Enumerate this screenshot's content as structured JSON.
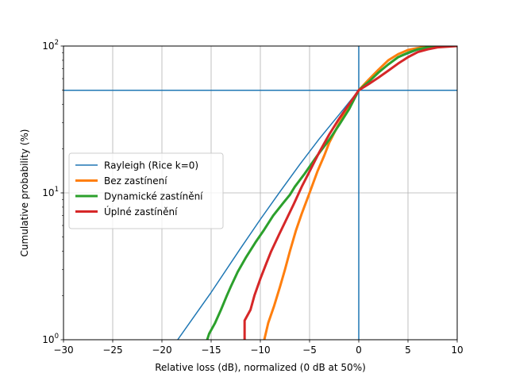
{
  "chart_data": {
    "type": "line",
    "xlabel": "Relative loss (dB), normalized (0 dB at 50%)",
    "ylabel": "Cumulative probability (%)",
    "xlim": [
      -30,
      10
    ],
    "ylim": [
      1,
      100
    ],
    "yscale": "log",
    "grid": true,
    "legend_position": "center-left",
    "x_ticks": [
      -30,
      -25,
      -20,
      -15,
      -10,
      -5,
      0,
      5,
      10
    ],
    "x_tick_labels": [
      "−30",
      "−25",
      "−20",
      "−15",
      "−10",
      "−5",
      "0",
      "5",
      "10"
    ],
    "y_ticks": [
      1,
      10,
      100
    ],
    "y_tick_labels": [
      {
        "base": "10",
        "exp": "0"
      },
      {
        "base": "10",
        "exp": "1"
      },
      {
        "base": "10",
        "exp": "2"
      }
    ],
    "reference_lines": {
      "vertical_x": 0,
      "horizontal_y": 50,
      "color": "#1f77b4"
    },
    "series": [
      {
        "name": "Rayleigh (Rice k=0)",
        "color": "#1f77b4",
        "width": 1.5,
        "points": [
          [
            -18.4,
            1
          ],
          [
            -15,
            2.1
          ],
          [
            -12,
            4.2
          ],
          [
            -10,
            6.6
          ],
          [
            -8,
            10.2
          ],
          [
            -6,
            15.6
          ],
          [
            -4,
            23.4
          ],
          [
            -2,
            34.1
          ],
          [
            0,
            50
          ],
          [
            2,
            67
          ],
          [
            4,
            83.5
          ],
          [
            6,
            94
          ],
          [
            8,
            98.8
          ],
          [
            10,
            100
          ]
        ]
      },
      {
        "name": "Bez zastínení",
        "color": "#ff7f0e",
        "width": 3,
        "points": [
          [
            -9.6,
            1
          ],
          [
            -9.2,
            1.3
          ],
          [
            -8.6,
            1.7
          ],
          [
            -8.0,
            2.3
          ],
          [
            -7.5,
            3.0
          ],
          [
            -7.0,
            4.0
          ],
          [
            -6.4,
            5.5
          ],
          [
            -5.8,
            7.2
          ],
          [
            -5.0,
            10
          ],
          [
            -4.2,
            14
          ],
          [
            -3.5,
            18
          ],
          [
            -3.0,
            22
          ],
          [
            -2.2,
            28
          ],
          [
            -1.5,
            34
          ],
          [
            -0.8,
            40
          ],
          [
            0,
            50
          ],
          [
            1,
            59
          ],
          [
            2,
            69
          ],
          [
            3,
            80
          ],
          [
            4,
            88
          ],
          [
            5,
            94
          ],
          [
            6,
            97
          ],
          [
            7,
            99
          ],
          [
            8,
            100
          ],
          [
            10,
            100
          ]
        ]
      },
      {
        "name": "Dynamické zastínění",
        "color": "#2ca02c",
        "width": 3,
        "points": [
          [
            -15.4,
            1
          ],
          [
            -15.2,
            1.1
          ],
          [
            -14.6,
            1.3
          ],
          [
            -14.0,
            1.6
          ],
          [
            -13.4,
            2.0
          ],
          [
            -13.0,
            2.3
          ],
          [
            -12.3,
            2.9
          ],
          [
            -11.5,
            3.6
          ],
          [
            -10.5,
            4.6
          ],
          [
            -9.7,
            5.5
          ],
          [
            -8.7,
            7.0
          ],
          [
            -7.7,
            8.5
          ],
          [
            -7.0,
            9.7
          ],
          [
            -6.5,
            11
          ],
          [
            -5.5,
            13.5
          ],
          [
            -4.2,
            18
          ],
          [
            -3.0,
            23
          ],
          [
            -2.0,
            29
          ],
          [
            -1.0,
            37
          ],
          [
            0,
            50
          ],
          [
            1,
            57
          ],
          [
            2,
            66
          ],
          [
            3,
            75
          ],
          [
            4,
            84
          ],
          [
            5,
            90
          ],
          [
            6,
            95
          ],
          [
            7,
            98
          ],
          [
            8,
            100
          ],
          [
            10,
            100
          ]
        ]
      },
      {
        "name": "Úplné zastínění",
        "color": "#d62728",
        "width": 3,
        "points": [
          [
            -11.6,
            1
          ],
          [
            -11.6,
            1.35
          ],
          [
            -11.0,
            1.6
          ],
          [
            -10.6,
            2.0
          ],
          [
            -10.0,
            2.6
          ],
          [
            -9.4,
            3.3
          ],
          [
            -8.9,
            4.0
          ],
          [
            -8.1,
            5.2
          ],
          [
            -7.5,
            6.3
          ],
          [
            -6.6,
            8.4
          ],
          [
            -5.8,
            11
          ],
          [
            -5.0,
            14
          ],
          [
            -4.0,
            19
          ],
          [
            -3.0,
            25
          ],
          [
            -2.0,
            32
          ],
          [
            -1.0,
            40
          ],
          [
            0,
            50
          ],
          [
            1,
            55
          ],
          [
            2,
            61
          ],
          [
            3,
            68
          ],
          [
            4,
            76
          ],
          [
            5,
            84
          ],
          [
            6,
            91
          ],
          [
            7,
            95
          ],
          [
            8,
            98
          ],
          [
            10,
            100
          ]
        ]
      }
    ]
  }
}
